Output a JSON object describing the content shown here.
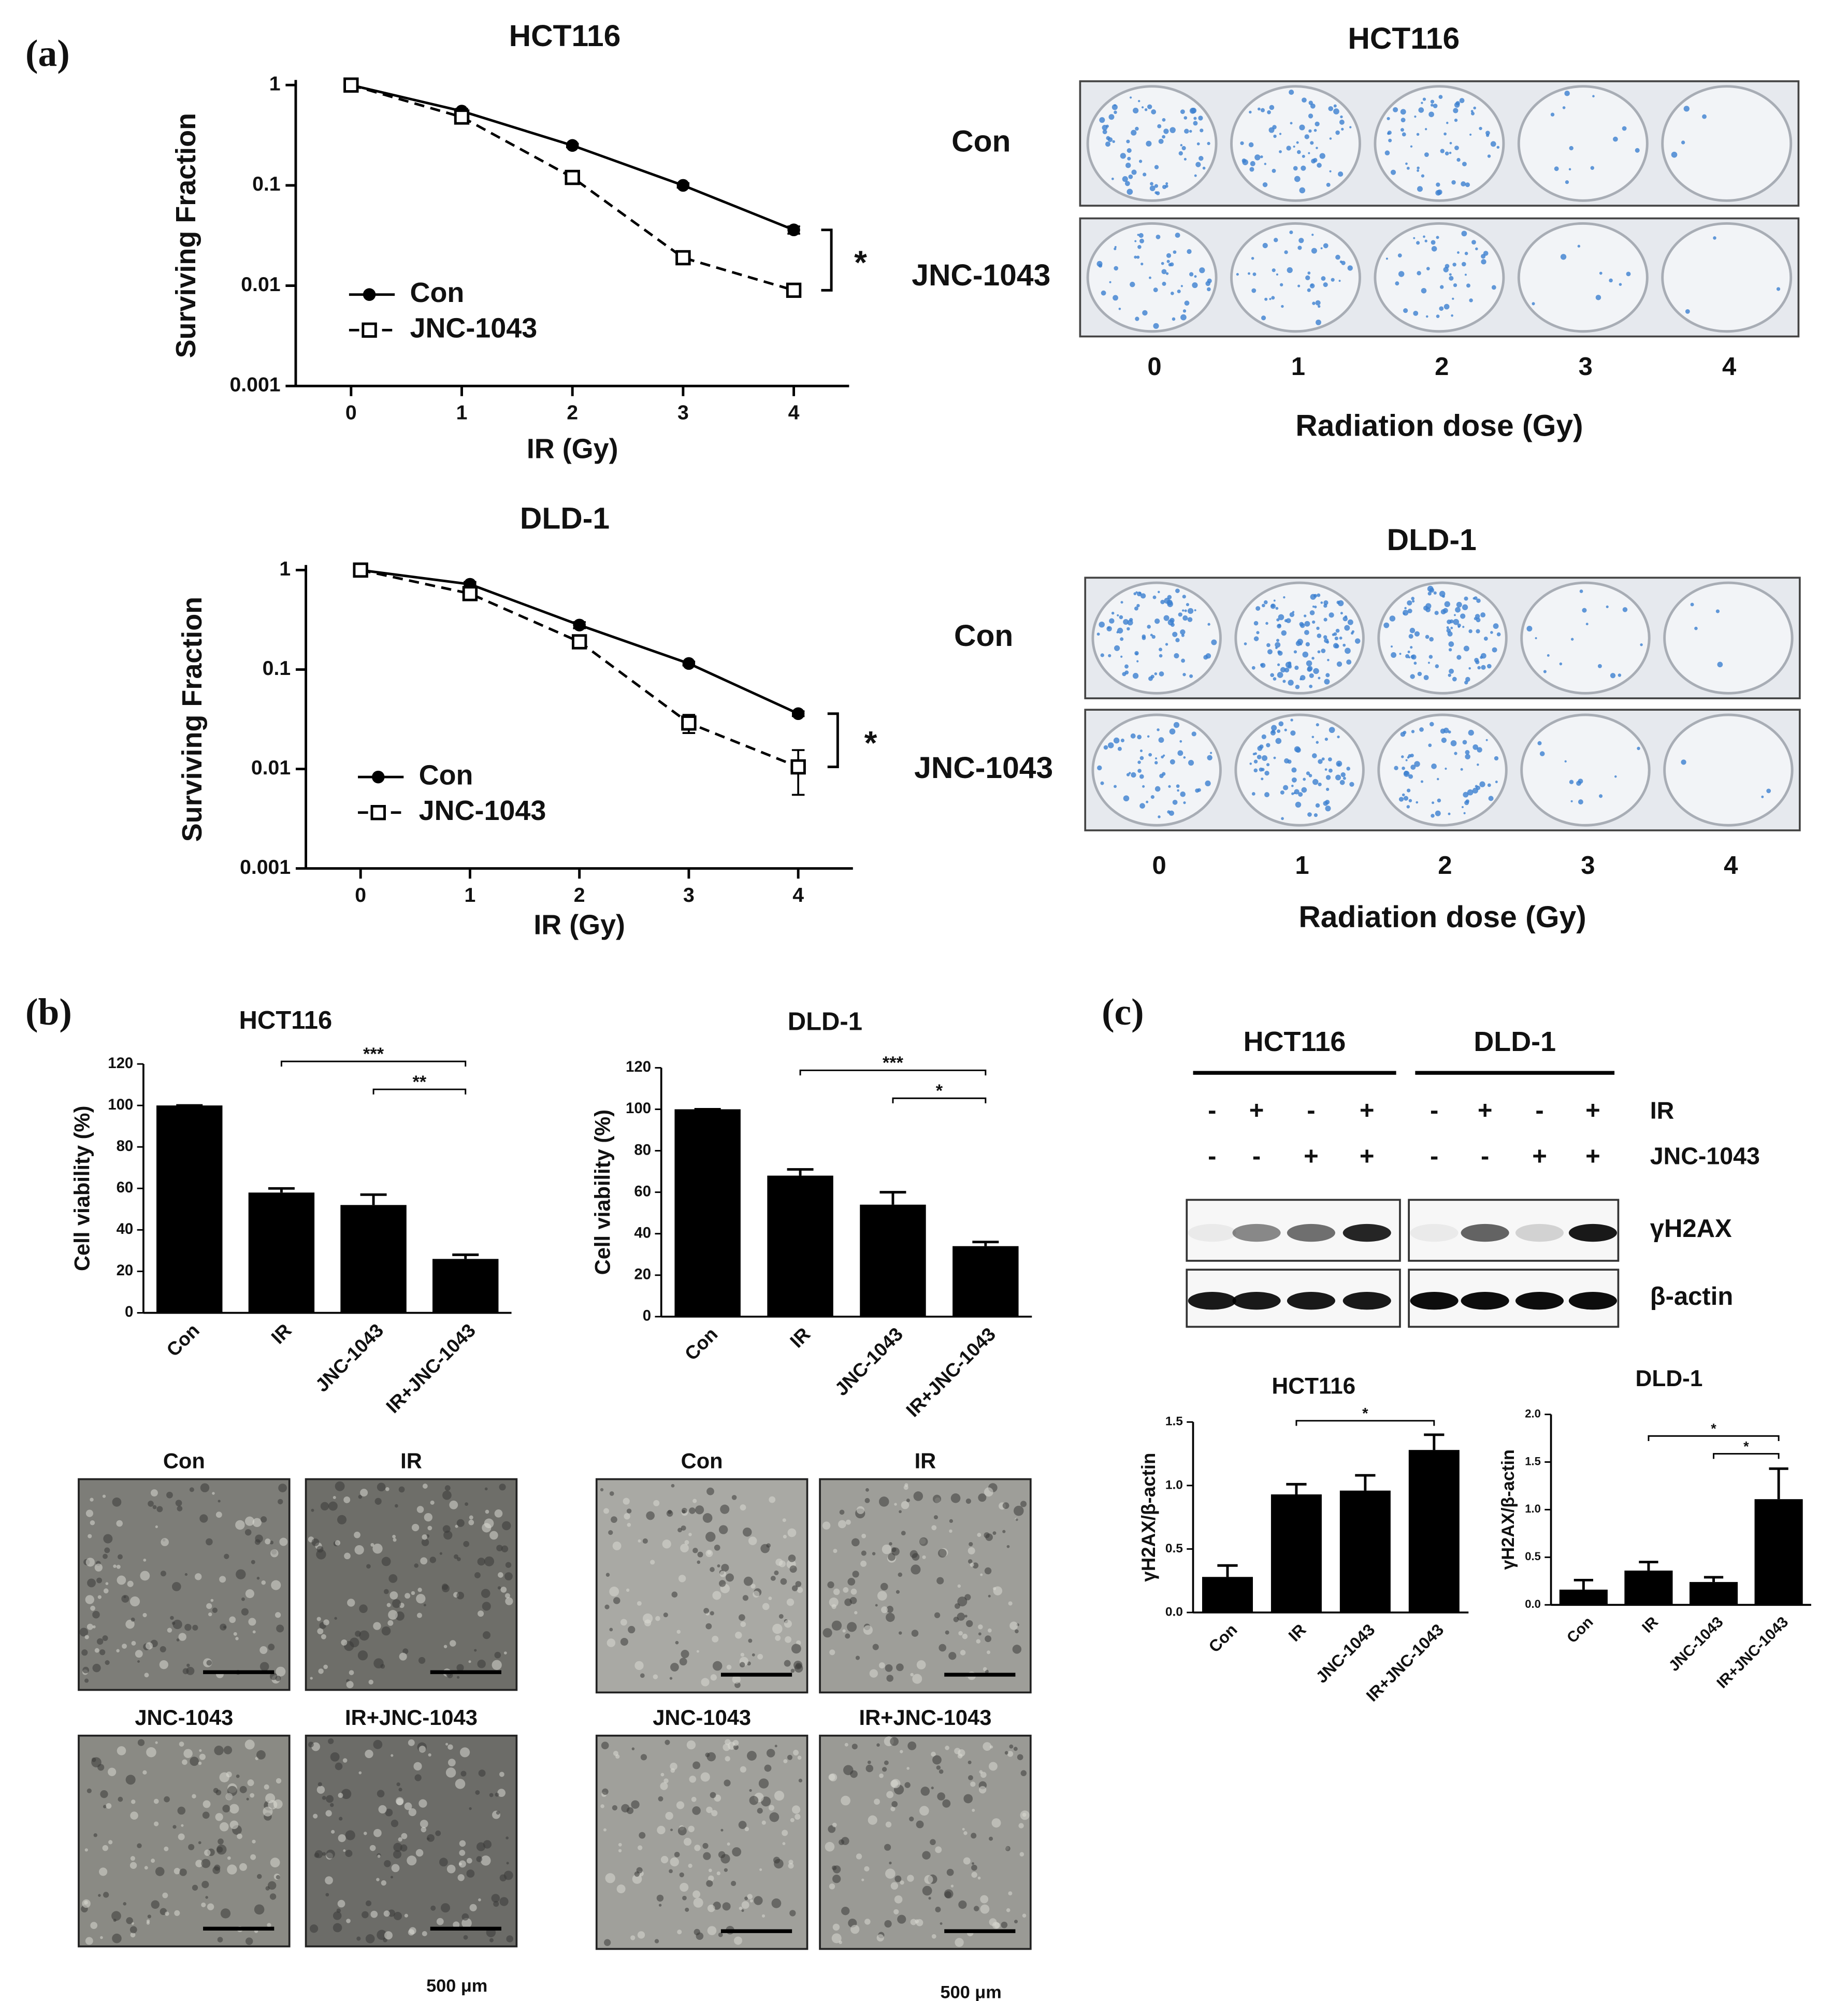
{
  "panel_labels": [
    "(a)",
    "(b)",
    "(c)"
  ],
  "chart_data": [
    {
      "type": "line",
      "title": "HCT116",
      "xlabel": "IR (Gy)",
      "ylabel": "Surviving Fraction",
      "log_y": true,
      "x": [
        0,
        1,
        2,
        3,
        4
      ],
      "xlim": [
        -0.5,
        4.5
      ],
      "xticks": [
        0,
        1,
        2,
        3,
        4
      ],
      "ylim": [
        0.001,
        1
      ],
      "yticks": [
        0.001,
        0.01,
        0.1,
        1
      ],
      "series": [
        {
          "name": "Con",
          "color": "#000000",
          "line_style": "solid",
          "marker": "circle",
          "values": [
            1,
            0.55,
            0.25,
            0.1,
            0.036
          ],
          "errors": [
            0,
            0.03,
            0.01,
            0.005,
            0.003
          ]
        },
        {
          "name": "JNC-1043",
          "color": "#000000",
          "line_style": "dashed",
          "marker": "square",
          "values": [
            1,
            0.48,
            0.12,
            0.019,
            0.009
          ],
          "errors": [
            0,
            0.04,
            0.01,
            0.002,
            0.001
          ]
        }
      ],
      "annotation": "*"
    },
    {
      "type": "line",
      "title": "DLD-1",
      "xlabel": "IR (Gy)",
      "ylabel": "Surviving Fraction",
      "log_y": true,
      "x": [
        0,
        1,
        2,
        3,
        4
      ],
      "xlim": [
        -0.5,
        4.5
      ],
      "xticks": [
        0,
        1,
        2,
        3,
        4
      ],
      "ylim": [
        0.001,
        1
      ],
      "yticks": [
        0.001,
        0.01,
        0.1,
        1
      ],
      "series": [
        {
          "name": "Con",
          "color": "#000000",
          "line_style": "solid",
          "marker": "circle",
          "values": [
            1,
            0.72,
            0.28,
            0.115,
            0.036
          ],
          "errors": [
            0,
            0.04,
            0.02,
            0.005,
            0.002
          ]
        },
        {
          "name": "JNC-1043",
          "color": "#000000",
          "line_style": "dashed",
          "marker": "square",
          "values": [
            1,
            0.58,
            0.19,
            0.029,
            0.0105
          ],
          "errors": [
            0,
            0.05,
            0.02,
            0.006,
            0.005
          ]
        }
      ],
      "annotation": "*"
    },
    {
      "type": "bar",
      "title": "HCT116",
      "ylabel": "Cell viability (%)",
      "categories": [
        "Con",
        "IR",
        "JNC-1043",
        "IR+JNC-1043"
      ],
      "values": [
        100,
        58,
        52,
        26
      ],
      "errors": [
        0,
        2,
        5,
        2
      ],
      "color": "#000000",
      "ylim": [
        0,
        120
      ],
      "yticks": [
        0,
        20,
        40,
        60,
        80,
        100,
        120
      ],
      "significance": [
        {
          "label": "***",
          "between": [
            "IR",
            "IR+JNC-1043"
          ]
        },
        {
          "label": "**",
          "between": [
            "JNC-1043",
            "IR+JNC-1043"
          ]
        }
      ]
    },
    {
      "type": "bar",
      "title": "DLD-1",
      "ylabel": "Cell viability (%)",
      "categories": [
        "Con",
        "IR",
        "JNC-1043",
        "IR+JNC-1043"
      ],
      "values": [
        100,
        68,
        54,
        34
      ],
      "errors": [
        0,
        3,
        6,
        2
      ],
      "color": "#000000",
      "ylim": [
        0,
        120
      ],
      "yticks": [
        0,
        20,
        40,
        60,
        80,
        100,
        120
      ],
      "significance": [
        {
          "label": "***",
          "between": [
            "IR",
            "IR+JNC-1043"
          ]
        },
        {
          "label": "*",
          "between": [
            "JNC-1043",
            "IR+JNC-1043"
          ]
        }
      ]
    },
    {
      "type": "bar",
      "title": "HCT116",
      "ylabel": "γH2AX/β-actin",
      "categories": [
        "Con",
        "IR",
        "JNC-1043",
        "IR+JNC-1043"
      ],
      "values": [
        0.28,
        0.93,
        0.96,
        1.28
      ],
      "errors": [
        0.09,
        0.08,
        0.12,
        0.12
      ],
      "color": "#000000",
      "ylim": [
        0,
        1.5
      ],
      "yticks": [
        {
          "value": 0,
          "label": "0.0"
        },
        {
          "value": 0.5,
          "label": "0.5"
        },
        {
          "value": 1,
          "label": "1.0"
        },
        {
          "value": 1.5,
          "label": "1.5"
        }
      ],
      "significance": [
        {
          "label": "*",
          "between": [
            "IR",
            "IR+JNC-1043"
          ]
        }
      ]
    },
    {
      "type": "bar",
      "title": "DLD-1",
      "ylabel": "γH2AX/β-actin",
      "categories": [
        "Con",
        "IR",
        "JNC-1043",
        "IR+JNC-1043"
      ],
      "values": [
        0.16,
        0.36,
        0.24,
        1.11
      ],
      "errors": [
        0.1,
        0.09,
        0.05,
        0.32
      ],
      "color": "#000000",
      "ylim": [
        0,
        2
      ],
      "yticks": [
        {
          "value": 0,
          "label": "0.0"
        },
        {
          "value": 0.5,
          "label": "0.5"
        },
        {
          "value": 1,
          "label": "1.0"
        },
        {
          "value": 1.5,
          "label": "1.5"
        },
        {
          "value": 2,
          "label": "2.0"
        }
      ],
      "significance": [
        {
          "label": "*",
          "between": [
            "IR",
            "IR+JNC-1043"
          ]
        },
        {
          "label": "*",
          "between": [
            "JNC-1043",
            "IR+JNC-1043"
          ]
        }
      ]
    }
  ],
  "colony_assays": [
    {
      "title": "HCT116",
      "rows": [
        "Con",
        "JNC-1043"
      ],
      "doses": [
        0,
        1,
        2,
        3,
        4
      ],
      "xlabel": "Radiation dose (Gy)"
    },
    {
      "title": "DLD-1",
      "rows": [
        "Con",
        "JNC-1043"
      ],
      "doses": [
        0,
        1,
        2,
        3,
        4
      ],
      "xlabel": "Radiation dose (Gy)"
    }
  ],
  "micrographs": [
    {
      "labels": [
        "Con",
        "IR",
        "JNC-1043",
        "IR+JNC-1043"
      ],
      "scale": "500 μm"
    },
    {
      "labels": [
        "Con",
        "IR",
        "JNC-1043",
        "IR+JNC-1043"
      ],
      "scale": "500 μm"
    }
  ],
  "western_blot": {
    "groups": [
      "HCT116",
      "DLD-1"
    ],
    "conditions": [
      {
        "name": "IR",
        "signs": [
          "-",
          "+",
          "-",
          "+",
          "-",
          "+",
          "-",
          "+"
        ]
      },
      {
        "name": "JNC-1043",
        "signs": [
          "-",
          "-",
          "+",
          "+",
          "-",
          "-",
          "+",
          "+"
        ]
      }
    ],
    "bands": [
      "γH2AX",
      "β-actin"
    ]
  }
}
